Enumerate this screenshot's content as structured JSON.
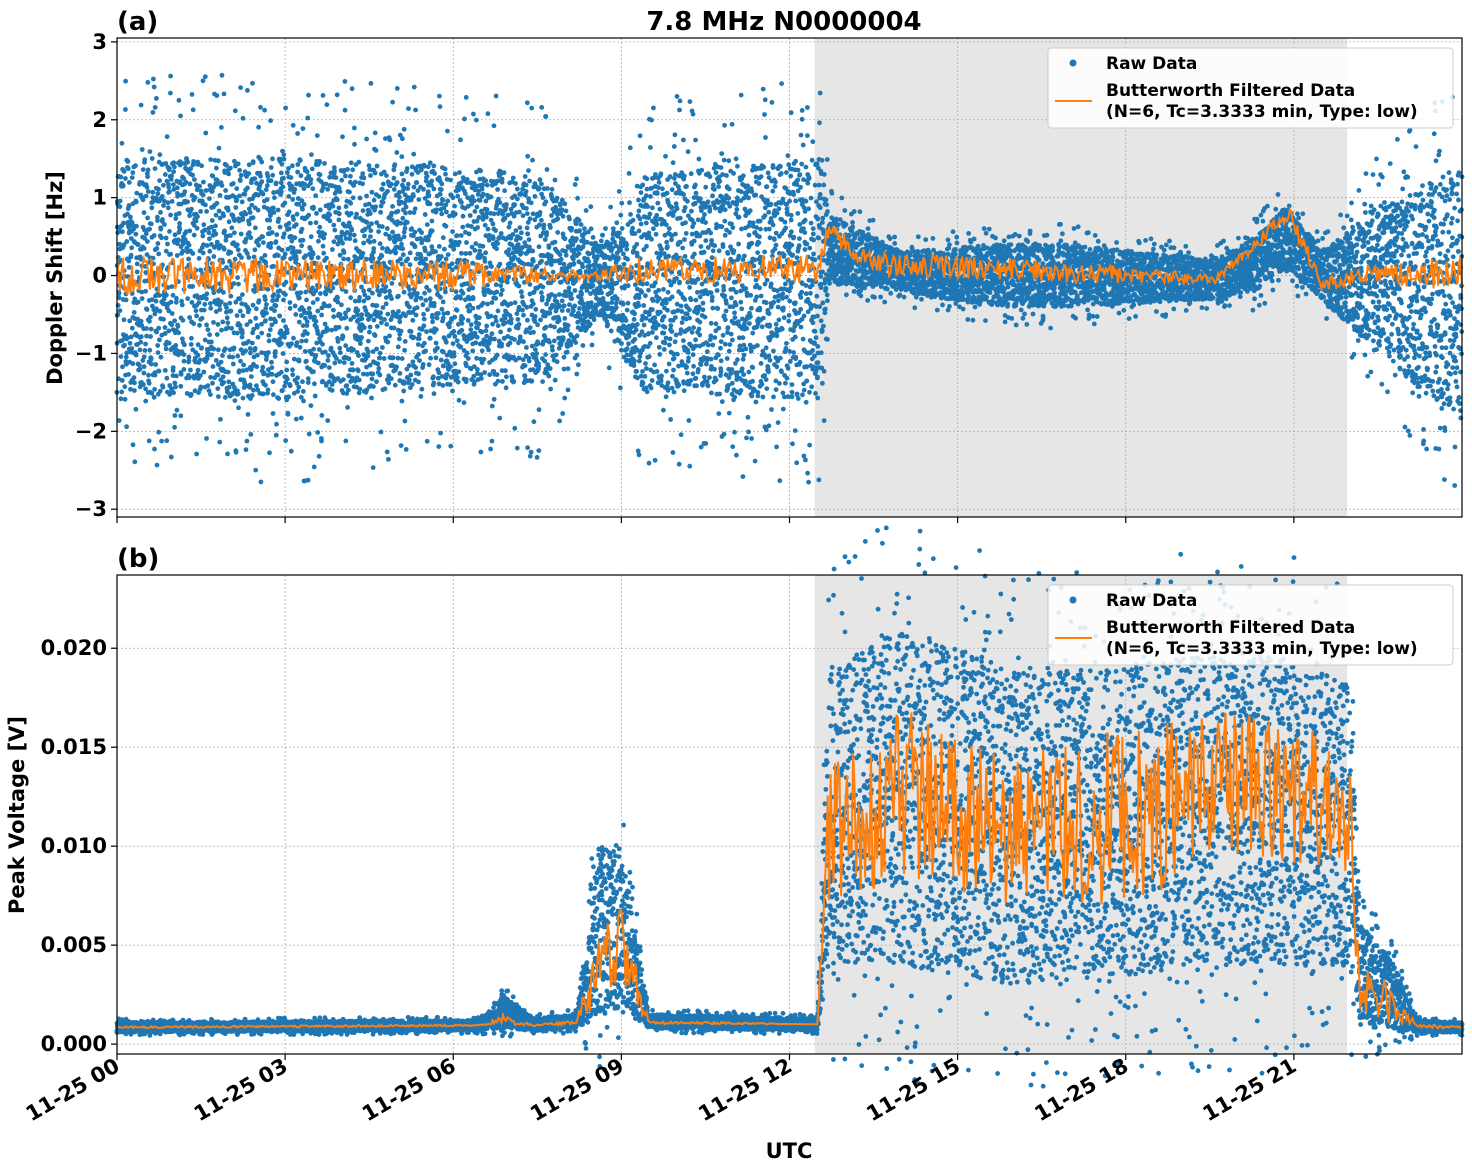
{
  "figure": {
    "title": "7.8 MHz N0000004",
    "xlabel": "UTC",
    "colors": {
      "raw": "#1f77b4",
      "filtered": "#ff7f0e",
      "shade": "#e6e6e6",
      "grid": "#b0b0b0"
    },
    "legend": {
      "raw_label": "Raw Data",
      "filtered_label_1": "Butterworth Filtered Data",
      "filtered_label_2": "(N=6, Tc=3.3333 min, Type: low)"
    }
  },
  "chart_data": [
    {
      "type": "scatter",
      "panel_label": "(a)",
      "title": "7.8 MHz N0000004",
      "xlabel": "UTC",
      "ylabel": "Doppler Shift [Hz]",
      "x_unit": "hours since 11-25 00 UTC",
      "xlim": [
        0,
        24
      ],
      "ylim": [
        -3.1,
        3.05
      ],
      "yticks": [
        -3,
        -2,
        -1,
        0,
        1,
        2,
        3
      ],
      "ytick_labels": [
        "−3",
        "−2",
        "−1",
        "0",
        "1",
        "2",
        "3"
      ],
      "xticks": [
        0,
        3,
        6,
        9,
        12,
        15,
        18,
        21
      ],
      "xtick_labels": [
        "11-25 00",
        "11-25 03",
        "11-25 06",
        "11-25 09",
        "11-25 12",
        "11-25 15",
        "11-25 18",
        "11-25 21"
      ],
      "shaded_region": [
        12.45,
        21.95
      ],
      "grid": true,
      "legend_position": "top-right",
      "series": [
        {
          "name": "Raw Data",
          "style": "points",
          "envelope_hours": [
            0,
            3,
            6,
            7.6,
            8.6,
            9.4,
            12.6,
            12.7,
            14,
            15.6,
            17,
            19.6,
            20.3,
            20.9,
            21.5,
            22.5,
            24
          ],
          "envelope_low": [
            -1.5,
            -1.6,
            -1.4,
            -1.4,
            -0.5,
            -1.5,
            -1.6,
            -0.1,
            -0.2,
            -0.4,
            -0.4,
            -0.3,
            -0.2,
            0.1,
            -0.3,
            -1.0,
            -1.9
          ],
          "envelope_high": [
            1.5,
            1.5,
            1.4,
            1.3,
            0.4,
            1.3,
            1.5,
            0.8,
            0.3,
            0.4,
            0.4,
            0.2,
            0.5,
            0.9,
            0.3,
            0.9,
            1.4
          ]
        },
        {
          "name": "Butterworth Filtered Data",
          "style": "line",
          "envelope_hours": [
            0,
            6,
            8.4,
            9.4,
            12.5,
            12.7,
            13.5,
            17,
            19.6,
            20.3,
            20.9,
            21.5,
            22.5,
            24
          ],
          "envelope_low": [
            -0.25,
            -0.2,
            -0.05,
            -0.1,
            -0.1,
            0.5,
            0.0,
            -0.1,
            -0.1,
            0.3,
            0.7,
            -0.2,
            -0.1,
            -0.25
          ],
          "envelope_high": [
            0.25,
            0.2,
            0.05,
            0.25,
            0.3,
            0.7,
            0.3,
            0.2,
            0.0,
            0.5,
            0.9,
            0.0,
            0.15,
            0.25
          ]
        }
      ]
    },
    {
      "type": "scatter",
      "panel_label": "(b)",
      "xlabel": "UTC",
      "ylabel": "Peak Voltage [V]",
      "x_unit": "hours since 11-25 00 UTC",
      "xlim": [
        0,
        24
      ],
      "ylim": [
        -0.0005,
        0.0237
      ],
      "yticks": [
        0,
        0.005,
        0.01,
        0.015,
        0.02
      ],
      "ytick_labels": [
        "0.000",
        "0.005",
        "0.010",
        "0.015",
        "0.020"
      ],
      "xticks": [
        0,
        3,
        6,
        9,
        12,
        15,
        18,
        21
      ],
      "xtick_labels": [
        "11-25 00",
        "11-25 03",
        "11-25 06",
        "11-25 09",
        "11-25 12",
        "11-25 15",
        "11-25 18",
        "11-25 21"
      ],
      "shaded_region": [
        12.45,
        21.95
      ],
      "grid": true,
      "legend_position": "top-right",
      "series": [
        {
          "name": "Raw Data",
          "style": "points",
          "envelope_hours": [
            0,
            6.5,
            6.9,
            7.4,
            8.2,
            8.6,
            9.0,
            9.5,
            12.5,
            12.7,
            14,
            16,
            18,
            20,
            21.5,
            22.0,
            22.2,
            22.8,
            23.2,
            24
          ],
          "envelope_low": [
            0.0006,
            0.0007,
            0.0008,
            0.0007,
            0.0008,
            0.0015,
            0.0018,
            0.0008,
            0.0007,
            0.004,
            0.004,
            0.003,
            0.0035,
            0.004,
            0.004,
            0.004,
            0.0008,
            0.0008,
            0.0006,
            0.0006
          ],
          "envelope_high": [
            0.0011,
            0.0012,
            0.0025,
            0.0013,
            0.0015,
            0.01,
            0.01,
            0.0015,
            0.0013,
            0.019,
            0.021,
            0.019,
            0.019,
            0.02,
            0.019,
            0.018,
            0.006,
            0.004,
            0.0012,
            0.0011
          ]
        },
        {
          "name": "Butterworth Filtered Data",
          "style": "line",
          "envelope_hours": [
            0,
            6.5,
            6.9,
            7.4,
            8.2,
            8.6,
            9.0,
            9.5,
            12.5,
            12.7,
            14,
            16,
            18,
            20,
            21.5,
            22.0,
            22.2,
            22.8,
            23.2,
            24
          ],
          "envelope_low": [
            0.0008,
            0.0009,
            0.001,
            0.0009,
            0.001,
            0.002,
            0.0025,
            0.001,
            0.001,
            0.007,
            0.008,
            0.007,
            0.007,
            0.009,
            0.009,
            0.008,
            0.001,
            0.001,
            0.0008,
            0.0008
          ],
          "envelope_high": [
            0.0009,
            0.001,
            0.0015,
            0.001,
            0.0012,
            0.006,
            0.007,
            0.0012,
            0.001,
            0.014,
            0.017,
            0.015,
            0.016,
            0.017,
            0.016,
            0.014,
            0.005,
            0.0025,
            0.001,
            0.0009
          ]
        }
      ]
    }
  ]
}
